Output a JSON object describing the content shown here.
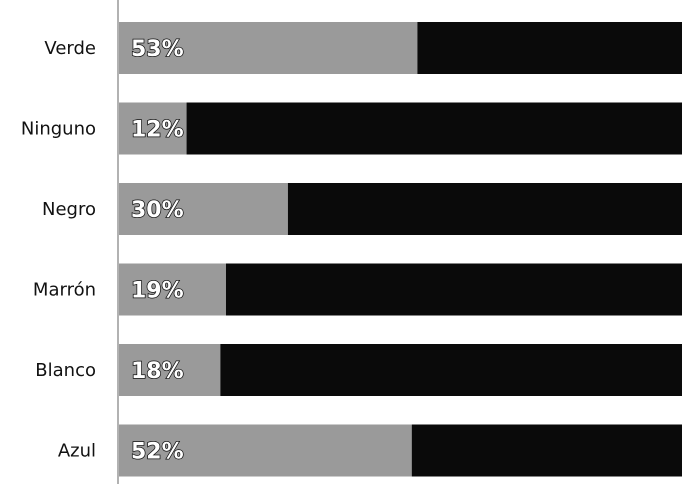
{
  "chart_data": {
    "type": "bar",
    "orientation": "horizontal",
    "stacked_to_100": true,
    "categories": [
      "Verde",
      "Ninguno",
      "Negro",
      "Marrón",
      "Blanco",
      "Azul"
    ],
    "series": [
      {
        "values": [
          53,
          12,
          30,
          19,
          18,
          52
        ],
        "color": "#9a9a9a"
      },
      {
        "values": [
          47,
          88,
          70,
          81,
          82,
          48
        ],
        "color": "#0a0a0a"
      }
    ],
    "data_labels": [
      "53%",
      "12%",
      "30%",
      "19%",
      "18%",
      "52%"
    ],
    "xlim": [
      0,
      100
    ],
    "grid": false,
    "legend": "none",
    "title": "",
    "xlabel": "",
    "ylabel": ""
  }
}
